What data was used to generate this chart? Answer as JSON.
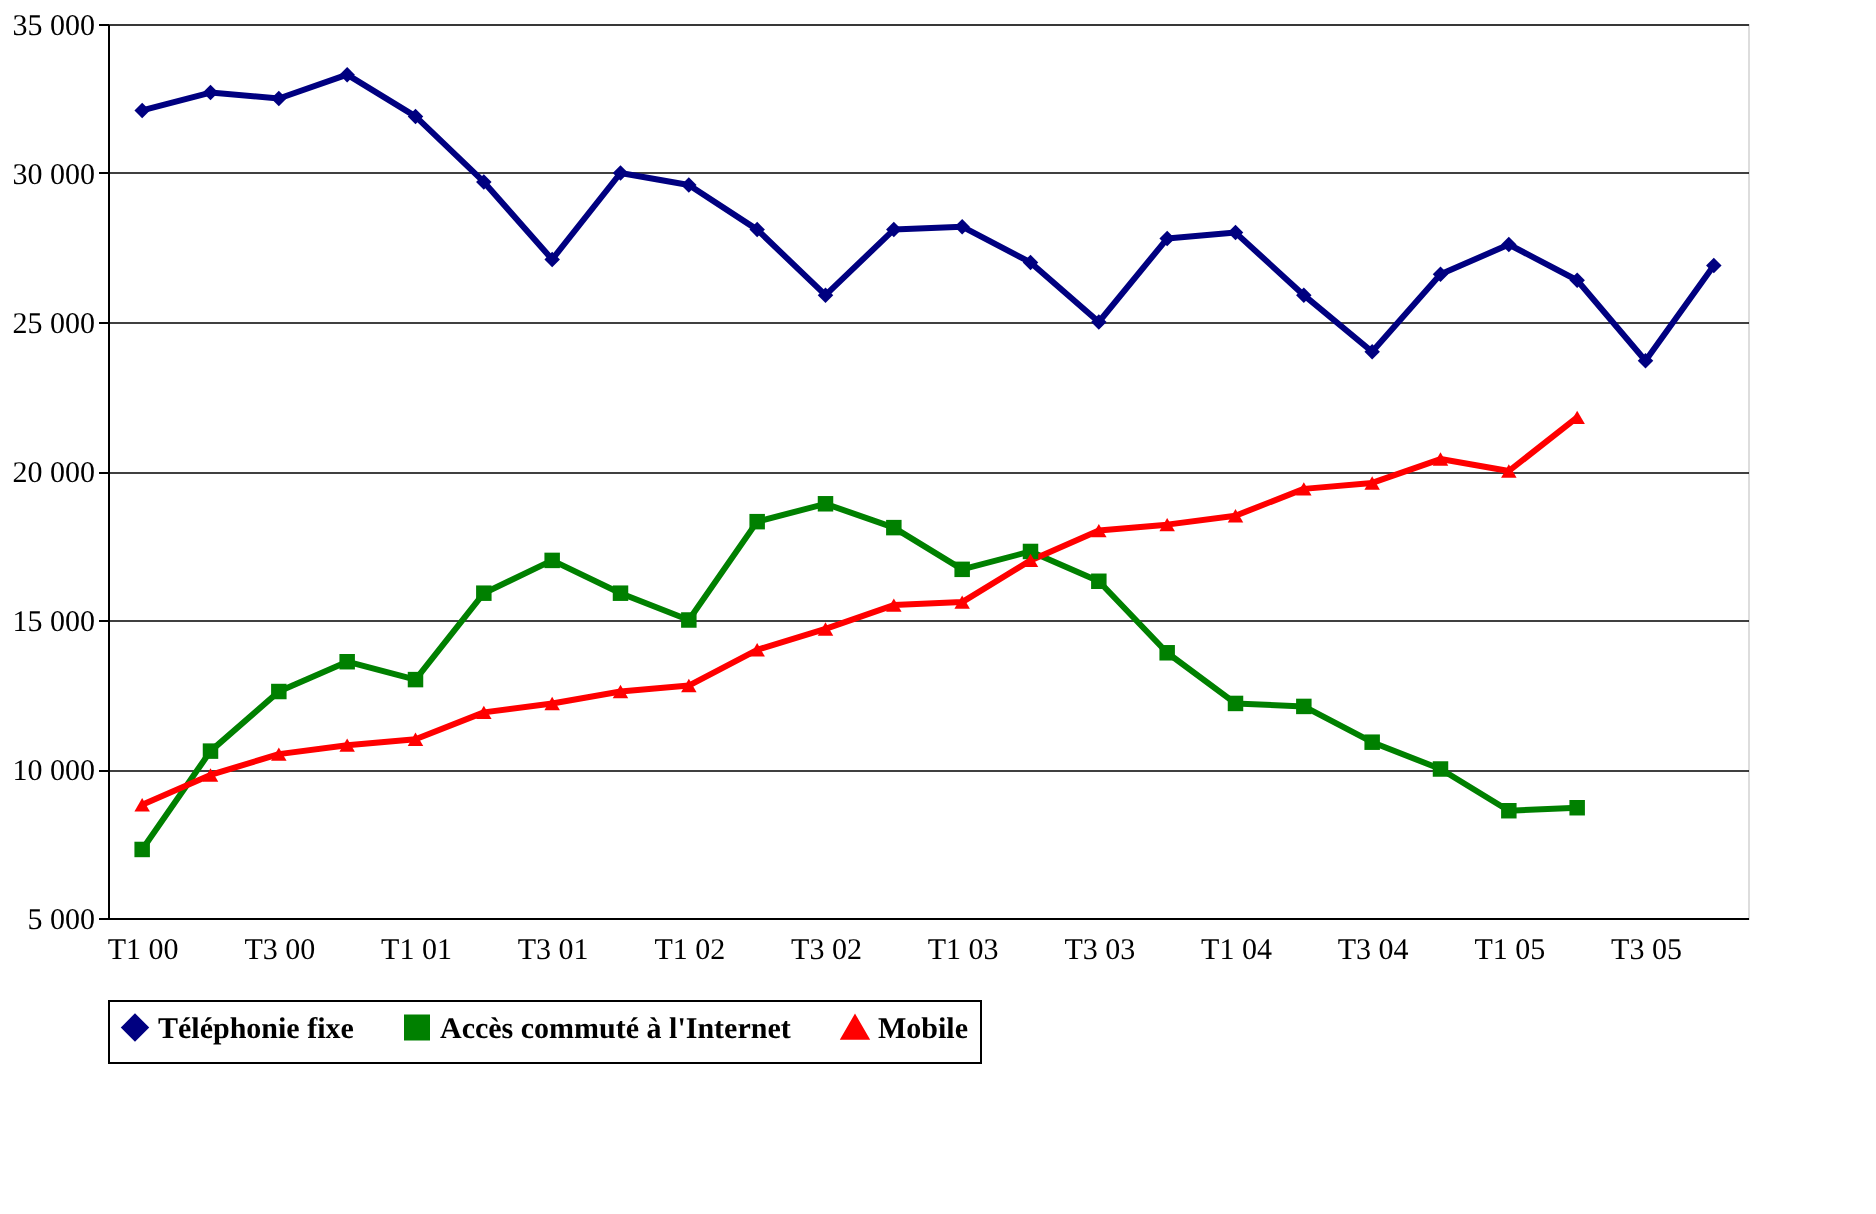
{
  "chart_data": {
    "type": "line",
    "categories": [
      "T1 00",
      null,
      "T3 00",
      null,
      "T1 01",
      null,
      "T3 01",
      null,
      "T1 02",
      null,
      "T3 02",
      null,
      "T1 03",
      null,
      "T3 03",
      null,
      "T1 04",
      null,
      "T3 04",
      null,
      "T1 05",
      null,
      "T3 05",
      null
    ],
    "series": [
      {
        "name": "Téléphonie fixe",
        "color": "#000080",
        "marker": "diamond",
        "values": [
          32100,
          32700,
          32500,
          33300,
          31900,
          29700,
          27100,
          30000,
          29600,
          28100,
          25900,
          28100,
          28200,
          27000,
          25000,
          27800,
          28000,
          25900,
          24000,
          26600,
          27600,
          26400,
          23700,
          26900
        ]
      },
      {
        "name": "Accès commuté à l'Internet",
        "color": "#008000",
        "marker": "square",
        "values": [
          7300,
          10600,
          12600,
          13600,
          13000,
          15900,
          17000,
          15900,
          15000,
          18300,
          18900,
          18100,
          16700,
          17300,
          16300,
          13900,
          12200,
          12100,
          10900,
          10000,
          8600,
          8700,
          null,
          null
        ]
      },
      {
        "name": "Mobile",
        "color": "#ff0000",
        "marker": "triangle",
        "values": [
          8800,
          9800,
          10500,
          10800,
          11000,
          11900,
          12200,
          12600,
          12800,
          14000,
          14700,
          15500,
          15600,
          17000,
          18000,
          18200,
          18500,
          19400,
          19600,
          20400,
          20000,
          21800,
          null,
          null
        ]
      }
    ],
    "ylim": [
      5000,
      35000
    ],
    "yticks": [
      {
        "value": 5000,
        "label": "5 000"
      },
      {
        "value": 10000,
        "label": "10 000"
      },
      {
        "value": 15000,
        "label": "15 000"
      },
      {
        "value": 20000,
        "label": "20 000"
      },
      {
        "value": 25000,
        "label": "25 000"
      },
      {
        "value": 30000,
        "label": "30 000"
      },
      {
        "value": 35000,
        "label": "35 000"
      }
    ],
    "grid": "y",
    "legend": "bottom",
    "line_style": "solid"
  }
}
